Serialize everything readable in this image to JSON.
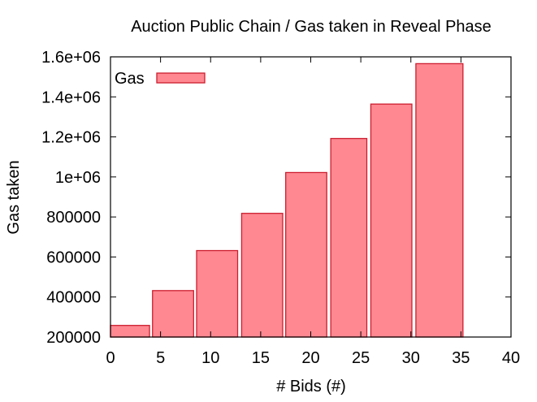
{
  "chart_data": {
    "type": "bar",
    "title": "Auction Public Chain / Gas taken in Reveal Phase",
    "xlabel": "# Bids (#)",
    "ylabel": "Gas taken",
    "xlim": [
      0,
      40
    ],
    "ylim": [
      200000,
      1600000
    ],
    "xticks": [
      0,
      5,
      10,
      15,
      20,
      25,
      30,
      35,
      40
    ],
    "xtick_labels": [
      "0",
      "5",
      "10",
      "15",
      "20",
      "25",
      "30",
      "35",
      "40"
    ],
    "yticks": [
      200000,
      400000,
      600000,
      800000,
      1000000,
      1200000,
      1400000,
      1600000
    ],
    "ytick_labels": [
      "200000",
      "400000",
      "600000",
      "800000",
      "1e+06",
      "1.2e+06",
      "1.4e+06",
      "1.6e+06"
    ],
    "legend_position": "top-left",
    "grid": false,
    "bar_color": "#ff8891",
    "bar_edge_color": "#cc1d2e",
    "series": [
      {
        "name": "Gas",
        "bars": [
          {
            "x0": 0.0,
            "x1": 3.9,
            "value": 258000
          },
          {
            "x0": 4.2,
            "x1": 8.3,
            "value": 432000
          },
          {
            "x0": 8.6,
            "x1": 12.7,
            "value": 632000
          },
          {
            "x0": 13.1,
            "x1": 17.2,
            "value": 818000
          },
          {
            "x0": 17.5,
            "x1": 21.6,
            "value": 1022000
          },
          {
            "x0": 22.0,
            "x1": 25.6,
            "value": 1192000
          },
          {
            "x0": 26.0,
            "x1": 30.1,
            "value": 1364000
          },
          {
            "x0": 30.5,
            "x1": 35.2,
            "value": 1566000
          }
        ]
      }
    ]
  }
}
